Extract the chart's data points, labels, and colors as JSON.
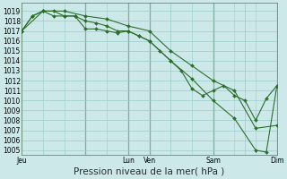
{
  "background_color": "#cce8e8",
  "grid_color": "#99cccc",
  "line_color": "#2d6e2d",
  "marker_color": "#2d6e2d",
  "ylim": [
    1004.5,
    1019.8
  ],
  "yticks": [
    1005,
    1006,
    1007,
    1008,
    1009,
    1010,
    1011,
    1012,
    1013,
    1014,
    1015,
    1016,
    1017,
    1018,
    1019
  ],
  "xlabel": "Pression niveau de la mer( hPa )",
  "xlabel_fontsize": 7.5,
  "tick_fontsize": 5.5,
  "xtick_labels": [
    "Jeu",
    "",
    "Lun",
    "Ven",
    "",
    "Sam",
    "",
    "Dim"
  ],
  "xtick_positions": [
    0,
    36,
    60,
    72,
    84,
    108,
    126,
    144
  ],
  "xlim": [
    0,
    144
  ],
  "vline_positions": [
    36,
    60,
    72,
    108,
    144
  ],
  "vline_color": "#446644",
  "line1_x": [
    0,
    6,
    12,
    18,
    24,
    30,
    36,
    42,
    48,
    54,
    60,
    66,
    72,
    78,
    84,
    90,
    96,
    102,
    108,
    114,
    120,
    126,
    132,
    138,
    144
  ],
  "line1_y": [
    1017,
    1018.5,
    1019,
    1019,
    1018.5,
    1018.5,
    1017.2,
    1017.2,
    1017.0,
    1016.8,
    1017.0,
    1016.5,
    1016.0,
    1015.0,
    1014.0,
    1013.0,
    1011.2,
    1010.5,
    1011.0,
    1011.5,
    1010.5,
    1010.0,
    1008.0,
    1010.2,
    1011.5
  ],
  "line2_x": [
    0,
    6,
    12,
    18,
    24,
    30,
    36,
    42,
    48,
    54,
    60,
    66,
    72,
    84,
    96,
    108,
    120,
    132,
    138,
    144
  ],
  "line2_y": [
    1017,
    1018.5,
    1019,
    1018.5,
    1018.5,
    1018.5,
    1018.0,
    1017.8,
    1017.5,
    1017.0,
    1017.0,
    1016.5,
    1016.0,
    1014.0,
    1012.2,
    1010.0,
    1008.2,
    1005.0,
    1004.8,
    1011.5
  ],
  "line3_x": [
    0,
    12,
    24,
    36,
    48,
    60,
    72,
    84,
    96,
    108,
    120,
    132,
    144
  ],
  "line3_y": [
    1017,
    1019,
    1019,
    1018.5,
    1018.2,
    1017.5,
    1017.0,
    1015.0,
    1013.5,
    1012.0,
    1011.0,
    1007.2,
    1007.5
  ]
}
